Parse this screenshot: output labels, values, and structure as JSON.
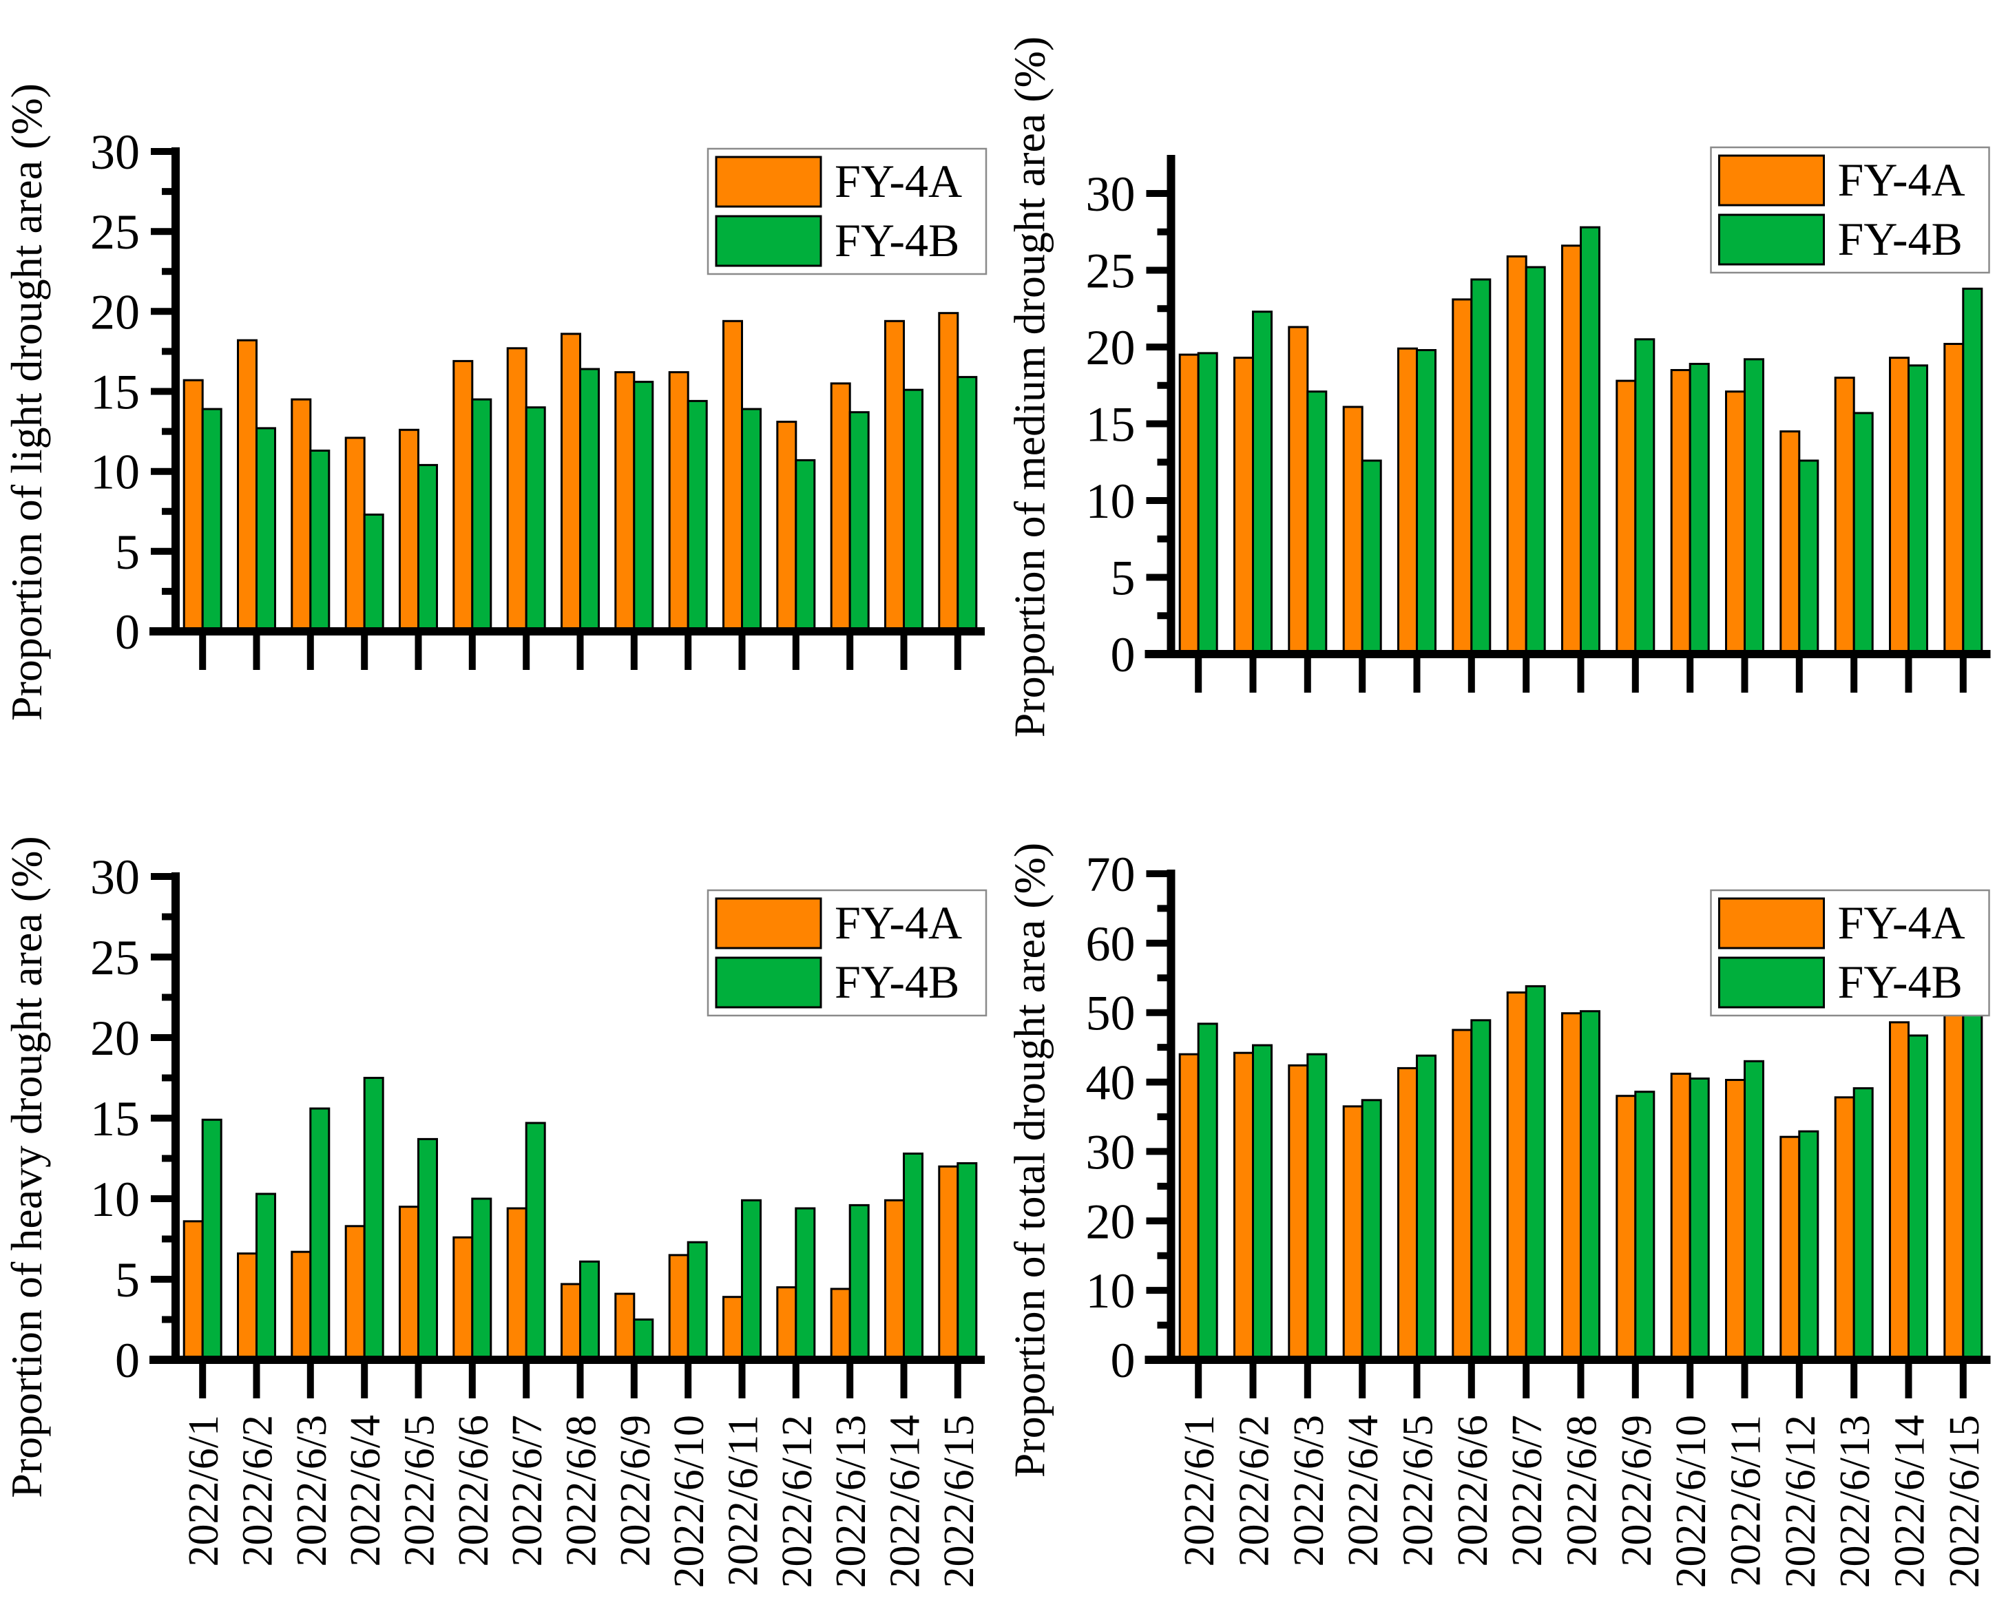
{
  "figure": {
    "background": "#ffffff",
    "description_labels": {
      "legend_fy4a": "FY-4A",
      "legend_fy4b": "FY-4B"
    }
  },
  "colors": {
    "fy4a": "#FF8400",
    "fy4b": "#00AF3C",
    "bar_outline": "#000000",
    "axis": "#000000",
    "legend_border": "#8a8a8a",
    "legend_background": "#ffffff"
  },
  "chart_data": [
    {
      "type": "bar",
      "title": "",
      "ylabel": "Proportion of light drought area (%)",
      "xlabel": "",
      "ylim": [
        0,
        30
      ],
      "yticks": [
        0,
        5,
        10,
        15,
        20,
        25,
        30
      ],
      "ytick_step": 5,
      "yminor_step": 2.5,
      "grid": false,
      "legend_position": "top-right",
      "x_tick_labels_visible": false,
      "categories": [
        "2022/6/1",
        "2022/6/2",
        "2022/6/3",
        "2022/6/4",
        "2022/6/5",
        "2022/6/6",
        "2022/6/7",
        "2022/6/8",
        "2022/6/9",
        "2022/6/10",
        "2022/6/11",
        "2022/6/12",
        "2022/6/13",
        "2022/6/14",
        "2022/6/15"
      ],
      "series": [
        {
          "name": "FY-4A",
          "color": "#FF8400",
          "values": [
            15.7,
            18.2,
            14.5,
            12.1,
            12.6,
            16.9,
            17.7,
            18.6,
            16.2,
            16.2,
            19.4,
            13.1,
            15.5,
            19.4,
            19.9
          ]
        },
        {
          "name": "FY-4B",
          "color": "#00AF3C",
          "values": [
            13.9,
            12.7,
            11.3,
            7.3,
            10.4,
            14.5,
            14.0,
            16.4,
            15.6,
            14.4,
            13.9,
            10.7,
            13.7,
            15.1,
            15.9
          ]
        }
      ]
    },
    {
      "type": "bar",
      "title": "",
      "ylabel": "Proportion of medium drought area (%)",
      "xlabel": "",
      "ylim": [
        0,
        30
      ],
      "yticks": [
        0,
        5,
        10,
        15,
        20,
        25,
        30
      ],
      "ytick_step": 5,
      "yminor_step": 2.5,
      "grid": false,
      "legend_position": "top-right",
      "x_tick_labels_visible": false,
      "categories": [
        "2022/6/1",
        "2022/6/2",
        "2022/6/3",
        "2022/6/4",
        "2022/6/5",
        "2022/6/6",
        "2022/6/7",
        "2022/6/8",
        "2022/6/9",
        "2022/6/10",
        "2022/6/11",
        "2022/6/12",
        "2022/6/13",
        "2022/6/14",
        "2022/6/15"
      ],
      "series": [
        {
          "name": "FY-4A",
          "color": "#FF8400",
          "values": [
            19.5,
            19.3,
            21.3,
            16.1,
            19.9,
            23.1,
            25.9,
            26.6,
            17.8,
            18.5,
            17.1,
            14.5,
            18.0,
            19.3,
            20.2
          ]
        },
        {
          "name": "FY-4B",
          "color": "#00AF3C",
          "values": [
            19.6,
            22.3,
            17.1,
            12.6,
            19.8,
            24.4,
            25.2,
            27.8,
            20.5,
            18.9,
            19.2,
            12.6,
            15.7,
            18.8,
            23.8
          ]
        }
      ]
    },
    {
      "type": "bar",
      "title": "",
      "ylabel": "Proportion of heavy drought area (%)",
      "xlabel": "",
      "ylim": [
        0,
        30
      ],
      "yticks": [
        0,
        5,
        10,
        15,
        20,
        25,
        30
      ],
      "ytick_step": 5,
      "yminor_step": 2.5,
      "grid": false,
      "legend_position": "top-right",
      "x_tick_labels_visible": true,
      "categories": [
        "2022/6/1",
        "2022/6/2",
        "2022/6/3",
        "2022/6/4",
        "2022/6/5",
        "2022/6/6",
        "2022/6/7",
        "2022/6/8",
        "2022/6/9",
        "2022/6/10",
        "2022/6/11",
        "2022/6/12",
        "2022/6/13",
        "2022/6/14",
        "2022/6/15"
      ],
      "series": [
        {
          "name": "FY-4A",
          "color": "#FF8400",
          "values": [
            8.6,
            6.6,
            6.7,
            8.3,
            9.5,
            7.6,
            9.4,
            4.7,
            4.1,
            6.5,
            3.9,
            4.5,
            4.4,
            9.9,
            12.0
          ]
        },
        {
          "name": "FY-4B",
          "color": "#00AF3C",
          "values": [
            14.9,
            10.3,
            15.6,
            17.5,
            13.7,
            10.0,
            14.7,
            6.1,
            2.5,
            7.3,
            9.9,
            9.4,
            9.6,
            12.8,
            12.2
          ]
        }
      ]
    },
    {
      "type": "bar",
      "title": "",
      "ylabel": "Proportion of total drought area (%)",
      "xlabel": "",
      "ylim": [
        0,
        70
      ],
      "yticks": [
        0,
        10,
        20,
        30,
        40,
        50,
        60,
        70
      ],
      "ytick_step": 10,
      "yminor_step": 5,
      "grid": false,
      "legend_position": "top-right",
      "x_tick_labels_visible": true,
      "categories": [
        "2022/6/1",
        "2022/6/2",
        "2022/6/3",
        "2022/6/4",
        "2022/6/5",
        "2022/6/6",
        "2022/6/7",
        "2022/6/8",
        "2022/6/9",
        "2022/6/10",
        "2022/6/11",
        "2022/6/12",
        "2022/6/13",
        "2022/6/14",
        "2022/6/15"
      ],
      "series": [
        {
          "name": "FY-4A",
          "color": "#FF8400",
          "values": [
            44.0,
            44.2,
            42.4,
            36.5,
            42.0,
            47.5,
            52.9,
            49.9,
            38.0,
            41.2,
            40.3,
            32.1,
            37.8,
            48.6,
            52.0
          ]
        },
        {
          "name": "FY-4B",
          "color": "#00AF3C",
          "values": [
            48.4,
            45.3,
            44.0,
            37.4,
            43.8,
            48.9,
            53.8,
            50.2,
            38.6,
            40.5,
            43.0,
            32.9,
            39.1,
            46.7,
            51.8
          ]
        }
      ]
    }
  ]
}
